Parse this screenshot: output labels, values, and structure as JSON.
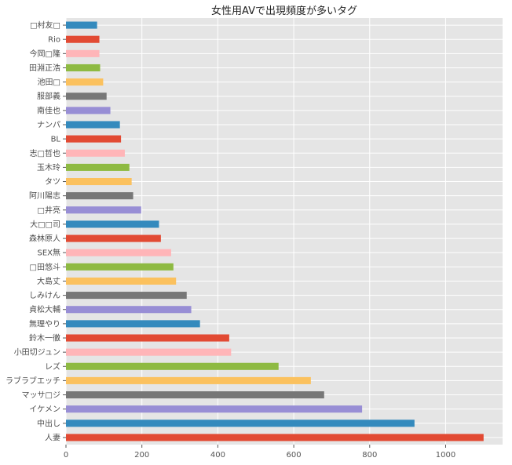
{
  "chart_data": {
    "type": "bar",
    "orientation": "horizontal",
    "title": "女性用AVで出現頻度が多いタグ",
    "xlabel": "",
    "ylabel": "",
    "xlim": [
      0,
      1150
    ],
    "xticks": [
      0,
      200,
      400,
      600,
      800,
      1000
    ],
    "grid": true,
    "legend": "none",
    "style": "ggplot",
    "colors": [
      "#E24A33",
      "#348ABD",
      "#988ED5",
      "#777777",
      "#FBC15E",
      "#8EBA42",
      "#FFB5B8"
    ],
    "categories": [
      "人妻",
      "中出し",
      "イケメン",
      "マッサ□ジ",
      "ラブラブエッチ",
      "レズ",
      "小田切ジュン",
      "鈴木一徹",
      "無理やり",
      "貞松大輔",
      "しみけん",
      "大島丈",
      "□田悠斗",
      "SEX無",
      "森林原人",
      "大□□司",
      "□井亮",
      "阿川陽志",
      "タツ",
      "玉木玲",
      "志□哲也",
      "BL",
      "ナンパ",
      "南佳也",
      "服部義",
      "池田□",
      "田淵正浩",
      "今岡□隆",
      "Rio",
      "□村友□"
    ],
    "values": [
      1100,
      918,
      780,
      680,
      645,
      560,
      435,
      430,
      353,
      330,
      318,
      290,
      283,
      277,
      250,
      245,
      198,
      177,
      173,
      167,
      155,
      145,
      142,
      117,
      107,
      98,
      90,
      88,
      88,
      82
    ]
  }
}
